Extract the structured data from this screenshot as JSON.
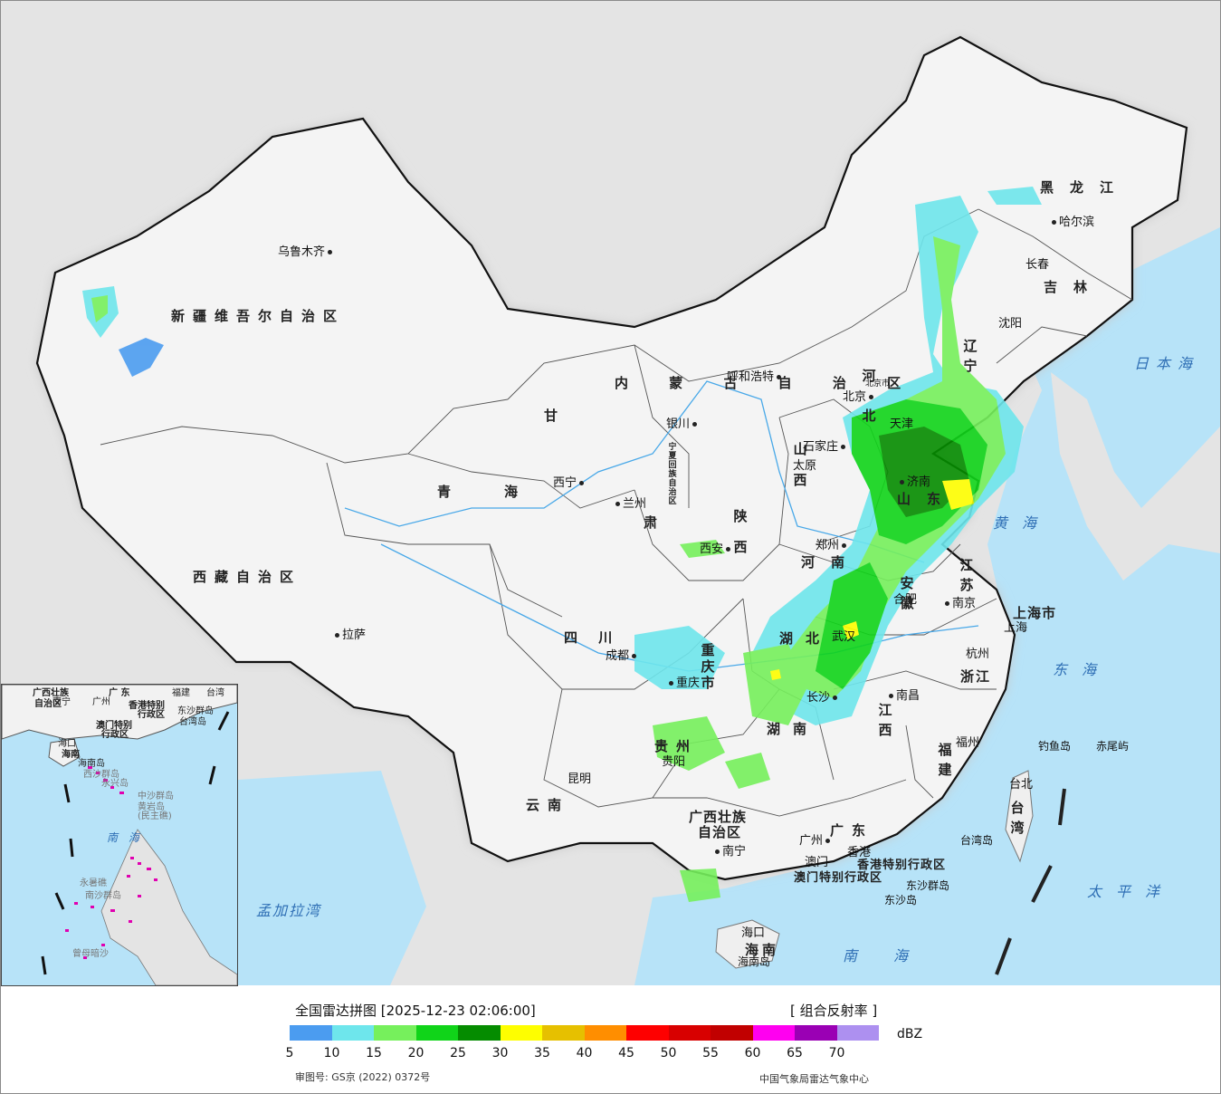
{
  "map": {
    "cities": [
      {
        "id": "urumqi",
        "name": "乌鲁木齐"
      },
      {
        "id": "lhasa",
        "name": "拉萨"
      },
      {
        "id": "xining",
        "name": "西宁"
      },
      {
        "id": "lanzhou",
        "name": "兰州"
      },
      {
        "id": "yinchuan",
        "name": "银川"
      },
      {
        "id": "hohhot",
        "name": "呼和浩特"
      },
      {
        "id": "beijing",
        "name": "北京"
      },
      {
        "id": "tianjin",
        "name": "天津"
      },
      {
        "id": "shijiazhuang",
        "name": "石家庄"
      },
      {
        "id": "taiyuan",
        "name": "太原"
      },
      {
        "id": "jinan",
        "name": "济南"
      },
      {
        "id": "zhengzhou",
        "name": "郑州"
      },
      {
        "id": "xian",
        "name": "西安"
      },
      {
        "id": "chengdu",
        "name": "成都"
      },
      {
        "id": "chongqing",
        "name": "重庆"
      },
      {
        "id": "wuhan",
        "name": "武汉"
      },
      {
        "id": "hefei",
        "name": "合肥"
      },
      {
        "id": "nanjing",
        "name": "南京"
      },
      {
        "id": "shanghai",
        "name": "上海"
      },
      {
        "id": "hangzhou",
        "name": "杭州"
      },
      {
        "id": "nanchang",
        "name": "南昌"
      },
      {
        "id": "changsha",
        "name": "长沙"
      },
      {
        "id": "fuzhou",
        "name": "福州"
      },
      {
        "id": "taipei",
        "name": "台北"
      },
      {
        "id": "guiyang",
        "name": "贵阳"
      },
      {
        "id": "kunming",
        "name": "昆明"
      },
      {
        "id": "nanning",
        "name": "南宁"
      },
      {
        "id": "guangzhou",
        "name": "广州"
      },
      {
        "id": "hongkong",
        "name": "香港"
      },
      {
        "id": "macau",
        "name": "澳门"
      },
      {
        "id": "haikou",
        "name": "海口"
      },
      {
        "id": "shenyang",
        "name": "沈阳"
      },
      {
        "id": "changchun",
        "name": "长春"
      },
      {
        "id": "harbin",
        "name": "哈尔滨"
      }
    ],
    "provinces": [
      {
        "id": "xinjiang",
        "name": "新疆维吾尔自治区"
      },
      {
        "id": "xizang",
        "name": "西藏自治区"
      },
      {
        "id": "qinghai_a",
        "name": "青"
      },
      {
        "id": "qinghai_b",
        "name": "海"
      },
      {
        "id": "gansu",
        "name": "甘"
      },
      {
        "id": "gansu_b",
        "name": "肃"
      },
      {
        "id": "sichuan",
        "name": "四 川"
      },
      {
        "id": "yunnan",
        "name": "云南"
      },
      {
        "id": "guizhou",
        "name": "贵州"
      },
      {
        "id": "guangxi_a",
        "name": "广西壮族"
      },
      {
        "id": "guangxi_b",
        "name": "自治区"
      },
      {
        "id": "guangdong",
        "name": "广东"
      },
      {
        "id": "hainan",
        "name": "海南"
      },
      {
        "id": "hunan",
        "name": "湖南"
      },
      {
        "id": "hubei",
        "name": "湖北"
      },
      {
        "id": "jiangxi",
        "name": "江西"
      },
      {
        "id": "fujian",
        "name": "福建"
      },
      {
        "id": "zhejiang",
        "name": "浙江"
      },
      {
        "id": "anhui",
        "name": "安徽"
      },
      {
        "id": "jiangsu",
        "name": "江苏"
      },
      {
        "id": "shandong",
        "name": "山东"
      },
      {
        "id": "henan",
        "name": "河南"
      },
      {
        "id": "shaanxi",
        "name": "陕西"
      },
      {
        "id": "shanxi",
        "name": "山西"
      },
      {
        "id": "hebei",
        "name": "河北"
      },
      {
        "id": "neimenggu",
        "name": "内 蒙 古 自 治 区"
      },
      {
        "id": "heilongjiang",
        "name": "黑龙江"
      },
      {
        "id": "jilin",
        "name": "吉林"
      },
      {
        "id": "liaoning",
        "name": "辽宁"
      },
      {
        "id": "taiwan",
        "name": "台湾"
      },
      {
        "id": "chongqing_shi",
        "name": "重庆市"
      },
      {
        "id": "shanghai_shi",
        "name": "上海市"
      },
      {
        "id": "ningxia",
        "name": "宁夏回族自治区"
      },
      {
        "id": "hk_sar",
        "name": "香港特别行政区"
      },
      {
        "id": "mo_sar",
        "name": "澳门特别行政区"
      }
    ],
    "seas": [
      {
        "id": "japan_sea",
        "name": "日本海"
      },
      {
        "id": "yellow_sea",
        "name": "黄海"
      },
      {
        "id": "east_sea",
        "name": "东海"
      },
      {
        "id": "south_sea",
        "name": "南海"
      },
      {
        "id": "pacific",
        "name": "太平洋"
      },
      {
        "id": "bengal",
        "name": "孟加拉湾"
      }
    ],
    "islands": [
      {
        "id": "diaoyu",
        "name": "钓鱼岛"
      },
      {
        "id": "chiwei",
        "name": "赤尾屿"
      },
      {
        "id": "taiwan_dao",
        "name": "台湾岛"
      },
      {
        "id": "dongsha_qd",
        "name": "东沙群岛"
      },
      {
        "id": "dongsha_d",
        "name": "东沙岛"
      },
      {
        "id": "hainan_dao",
        "name": "海南岛"
      },
      {
        "id": "shanghai_small",
        "name": "上海"
      },
      {
        "id": "beijing_shi",
        "name": "北京市"
      }
    ],
    "inset": {
      "labels": [
        {
          "id": "i_guangxi",
          "name": "广西壮族"
        },
        {
          "id": "i_guangxi2",
          "name": "自治区"
        },
        {
          "id": "i_nanning",
          "name": "南宁"
        },
        {
          "id": "i_guangdong",
          "name": "广 东"
        },
        {
          "id": "i_guangzhou",
          "name": "广州"
        },
        {
          "id": "i_fujian",
          "name": "福建"
        },
        {
          "id": "i_taiwan",
          "name": "台湾"
        },
        {
          "id": "i_hk",
          "name": "香港特别"
        },
        {
          "id": "i_hk2",
          "name": "行政区"
        },
        {
          "id": "i_mo",
          "name": "澳门特别"
        },
        {
          "id": "i_mo2",
          "name": "行政区"
        },
        {
          "id": "i_dongsha",
          "name": "东沙群岛"
        },
        {
          "id": "i_taiwan_dao",
          "name": "台湾岛"
        },
        {
          "id": "i_haikou",
          "name": "海口"
        },
        {
          "id": "i_hainan",
          "name": "海南"
        },
        {
          "id": "i_hainan_dao",
          "name": "海南岛"
        },
        {
          "id": "i_xisha",
          "name": "西沙群岛"
        },
        {
          "id": "i_yongxing",
          "name": "永兴岛"
        },
        {
          "id": "i_zhongsha",
          "name": "中沙群岛"
        },
        {
          "id": "i_huangyan",
          "name": "黄岩岛"
        },
        {
          "id": "i_minzhu",
          "name": "(民主礁)"
        },
        {
          "id": "i_yongshu",
          "name": "永暑礁"
        },
        {
          "id": "i_nansha",
          "name": "南沙群岛"
        },
        {
          "id": "i_zengmu",
          "name": "曾母暗沙"
        }
      ],
      "sea": "南 海"
    }
  },
  "legend": {
    "title": "全国雷达拼图 [2025-12-23 02:06:00]",
    "product": "[ 组合反射率 ]",
    "unit": "dBZ",
    "ticks": [
      "5",
      "10",
      "15",
      "20",
      "25",
      "30",
      "35",
      "40",
      "45",
      "50",
      "55",
      "60",
      "65",
      "70"
    ],
    "colors": [
      "#4b9cf0",
      "#6ee6ec",
      "#76f05c",
      "#10d419",
      "#058c00",
      "#fefe00",
      "#e6c000",
      "#ff8e00",
      "#fe0000",
      "#d80000",
      "#c10000",
      "#ff00f0",
      "#9a00b4",
      "#ad90f0"
    ],
    "credit_left": "审图号: GS京 (2022) 0372号",
    "credit_right": "中国气象局雷达气象中心"
  },
  "chart_data": {
    "type": "heatmap",
    "title": "全国雷达拼图 [2025-12-23 02:06:00]",
    "product": "组合反射率",
    "unit": "dBZ",
    "scale_ticks": [
      5,
      10,
      15,
      20,
      25,
      30,
      35,
      40,
      45,
      50,
      55,
      60,
      65,
      70
    ]
  }
}
